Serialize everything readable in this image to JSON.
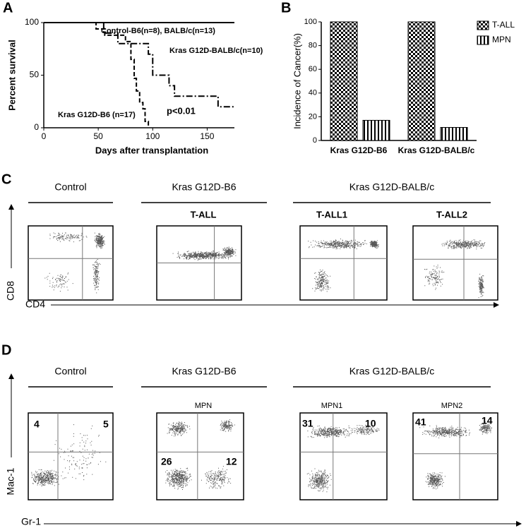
{
  "panel_labels": [
    "A",
    "B",
    "C",
    "D"
  ],
  "chart_data": [
    {
      "type": "step",
      "xlabel": "Days after transplantation",
      "ylabel": "Percent survival",
      "xlim": [
        0,
        175
      ],
      "xticks": [
        0,
        50,
        100,
        150
      ],
      "ylim": [
        0,
        100
      ],
      "yticks": [
        0,
        50,
        100
      ],
      "series": [
        {
          "name": "Control-B6(n=8), BALB/c(n=13)",
          "color": "#000000",
          "style": "solid",
          "x": [
            0,
            175
          ],
          "values": [
            100,
            100
          ]
        },
        {
          "name": "Kras G12D-BALB/c(n=10)",
          "color": "#000000",
          "style": "dashdot",
          "x": [
            0,
            55,
            68,
            96,
            100,
            115,
            120,
            160,
            175
          ],
          "values": [
            100,
            90,
            80,
            70,
            50,
            40,
            30,
            20,
            20
          ]
        },
        {
          "name": "Kras G12D-B6 (n=17)",
          "color": "#000000",
          "style": "dashed",
          "x": [
            0,
            48,
            56,
            75,
            80,
            83,
            85,
            88,
            91,
            93,
            96
          ],
          "values": [
            100,
            94,
            88,
            82,
            65,
            47,
            35,
            24,
            18,
            6,
            0
          ]
        }
      ],
      "annotation": "p<0.01"
    },
    {
      "type": "bar",
      "ylabel": "Incidence of Cancer(%)",
      "categories": [
        "Kras G12D-B6",
        "Kras G12D-BALB/c"
      ],
      "ylim": [
        0,
        100
      ],
      "yticks": [
        0,
        20,
        40,
        60,
        80,
        100
      ],
      "legend": "upper right",
      "series": [
        {
          "name": "T-ALL",
          "color": "#000000",
          "pattern": "checker",
          "values": [
            100,
            100
          ]
        },
        {
          "name": "MPN",
          "color": "#000000",
          "pattern": "stripes",
          "values": [
            17,
            11
          ]
        }
      ]
    }
  ],
  "flow_c": {
    "groups": [
      "Control",
      "Kras G12D-B6",
      "Kras G12D-BALB/c"
    ],
    "plots": [
      "T-ALL",
      "T-ALL1",
      "T-ALL2"
    ],
    "y_axis": "CD8",
    "x_axis": "CD4"
  },
  "flow_d": {
    "groups": [
      "Control",
      "Kras G12D-B6",
      "Kras G12D-BALB/c"
    ],
    "plots": [
      "MPN",
      "MPN1",
      "MPN2"
    ],
    "quadrants": [
      [
        4,
        5
      ],
      [
        26,
        12
      ],
      [
        31,
        10
      ],
      [
        41,
        14
      ]
    ],
    "y_axis": "Mac-1",
    "x_axis": "Gr-1"
  }
}
